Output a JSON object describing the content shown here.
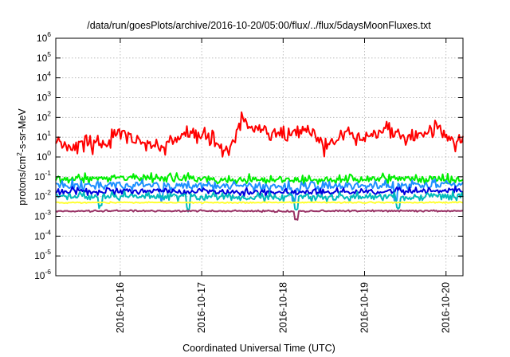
{
  "chart_data": {
    "type": "line",
    "title": "/data/run/goesPlots/archive/2016-10-20/05:00/flux/../flux/5daysMoonFluxes.txt",
    "xlabel": "Coordinated Universal Time (UTC)",
    "ylabel_base": "protons/cm",
    "ylabel_sup": "2",
    "ylabel_rest": "-s-sr-MeV",
    "y_scale": "log",
    "ylim": [
      1e-06,
      1000000.0
    ],
    "y_ticks": [
      {
        "base": "10",
        "exp": "-6",
        "value": -6
      },
      {
        "base": "10",
        "exp": "-5",
        "value": -5
      },
      {
        "base": "10",
        "exp": "-4",
        "value": -4
      },
      {
        "base": "10",
        "exp": "-3",
        "value": -3
      },
      {
        "base": "10",
        "exp": "-2",
        "value": -2
      },
      {
        "base": "10",
        "exp": "-1",
        "value": -1
      },
      {
        "base": "10",
        "exp": "0",
        "value": 0
      },
      {
        "base": "10",
        "exp": "1",
        "value": 1
      },
      {
        "base": "10",
        "exp": "2",
        "value": 2
      },
      {
        "base": "10",
        "exp": "3",
        "value": 3
      },
      {
        "base": "10",
        "exp": "4",
        "value": 4
      },
      {
        "base": "10",
        "exp": "5",
        "value": 5
      },
      {
        "base": "10",
        "exp": "6",
        "value": 6
      }
    ],
    "xlim": [
      "2016-10-15 05:00",
      "2016-10-20 05:00"
    ],
    "x_ticks": [
      "2016-10-16",
      "2016-10-17",
      "2016-10-18",
      "2016-10-19",
      "2016-10-20"
    ],
    "grid": true,
    "legend": "none",
    "series": [
      {
        "color": "#ff0000",
        "levels": [
          [
            "2016-10-15 05:00",
            8
          ],
          [
            "2016-10-15 09:00",
            3.5
          ],
          [
            "2016-10-15 14:00",
            4
          ],
          [
            "2016-10-15 20:00",
            5
          ],
          [
            "2016-10-16 00:00",
            18
          ],
          [
            "2016-10-16 06:00",
            6
          ],
          [
            "2016-10-16 12:00",
            3
          ],
          [
            "2016-10-16 16:00",
            7
          ],
          [
            "2016-10-16 20:00",
            15
          ],
          [
            "2016-10-17 02:00",
            10
          ],
          [
            "2016-10-17 06:00",
            3
          ],
          [
            "2016-10-17 08:00",
            2
          ],
          [
            "2016-10-17 10:00",
            15
          ],
          [
            "2016-10-17 12:00",
            100
          ],
          [
            "2016-10-17 14:00",
            30
          ],
          [
            "2016-10-17 18:00",
            25
          ],
          [
            "2016-10-18 02:00",
            10
          ],
          [
            "2016-10-18 08:00",
            25
          ],
          [
            "2016-10-18 12:00",
            3
          ],
          [
            "2016-10-18 18:00",
            12
          ],
          [
            "2016-10-19 00:00",
            10
          ],
          [
            "2016-10-19 06:00",
            30
          ],
          [
            "2016-10-19 12:00",
            8
          ],
          [
            "2016-10-19 18:00",
            12
          ],
          [
            "2016-10-19 22:00",
            30
          ],
          [
            "2016-10-20 00:00",
            10
          ],
          [
            "2016-10-20 03:00",
            5
          ],
          [
            "2016-10-20 05:00",
            7
          ]
        ],
        "jitter": 0.5,
        "dips": [],
        "dip_depth": 0
      },
      {
        "color": "#00ee00",
        "levels": [
          [
            "2016-10-15 05:00",
            0.08
          ],
          [
            "2016-10-16 00:00",
            0.09
          ],
          [
            "2016-10-17 00:00",
            0.08
          ],
          [
            "2016-10-18 00:00",
            0.07
          ],
          [
            "2016-10-19 00:00",
            0.08
          ],
          [
            "2016-10-20 05:00",
            0.08
          ]
        ],
        "jitter": 0.28,
        "dips": [],
        "dip_depth": 0
      },
      {
        "color": "#1e90ff",
        "levels": [
          [
            "2016-10-15 05:00",
            0.035
          ],
          [
            "2016-10-16 00:00",
            0.04
          ],
          [
            "2016-10-17 00:00",
            0.035
          ],
          [
            "2016-10-18 00:00",
            0.03
          ],
          [
            "2016-10-19 00:00",
            0.035
          ],
          [
            "2016-10-20 05:00",
            0.04
          ]
        ],
        "jitter": 0.3,
        "dips": [
          "2016-10-16 12:00",
          "2016-10-18 03:00",
          "2016-10-19 09:00"
        ],
        "dip_depth": 0.7
      },
      {
        "color": "#0000dd",
        "levels": [
          [
            "2016-10-15 05:00",
            0.02
          ],
          [
            "2016-10-16 00:00",
            0.018
          ],
          [
            "2016-10-17 00:00",
            0.02
          ],
          [
            "2016-10-18 00:00",
            0.015
          ],
          [
            "2016-10-19 00:00",
            0.018
          ],
          [
            "2016-10-20 05:00",
            0.02
          ]
        ],
        "jitter": 0.22,
        "dips": [],
        "dip_depth": 0
      },
      {
        "color": "#00bbbb",
        "levels": [
          [
            "2016-10-15 05:00",
            0.01
          ],
          [
            "2016-10-16 00:00",
            0.011
          ],
          [
            "2016-10-17 00:00",
            0.01
          ],
          [
            "2016-10-18 00:00",
            0.009
          ],
          [
            "2016-10-19 00:00",
            0.01
          ],
          [
            "2016-10-20 05:00",
            0.011
          ]
        ],
        "jitter": 0.25,
        "dips": [
          "2016-10-15 18:00",
          "2016-10-16 20:00",
          "2016-10-18 04:00",
          "2016-10-19 10:00"
        ],
        "dip_depth": 0.55
      },
      {
        "color": "#ffff33",
        "levels": [
          [
            "2016-10-15 05:00",
            0.005
          ],
          [
            "2016-10-20 05:00",
            0.005
          ]
        ],
        "jitter": 0.04,
        "dips": [],
        "dip_depth": 0
      },
      {
        "color": "#993366",
        "levels": [
          [
            "2016-10-15 05:00",
            0.0018
          ],
          [
            "2016-10-16 00:00",
            0.0019
          ],
          [
            "2016-10-17 00:00",
            0.0019
          ],
          [
            "2016-10-18 00:00",
            0.0018
          ],
          [
            "2016-10-19 00:00",
            0.0019
          ],
          [
            "2016-10-20 05:00",
            0.0019
          ]
        ],
        "jitter": 0.05,
        "dips": [
          "2016-10-18 04:00"
        ],
        "dip_depth": 0.45
      }
    ]
  }
}
